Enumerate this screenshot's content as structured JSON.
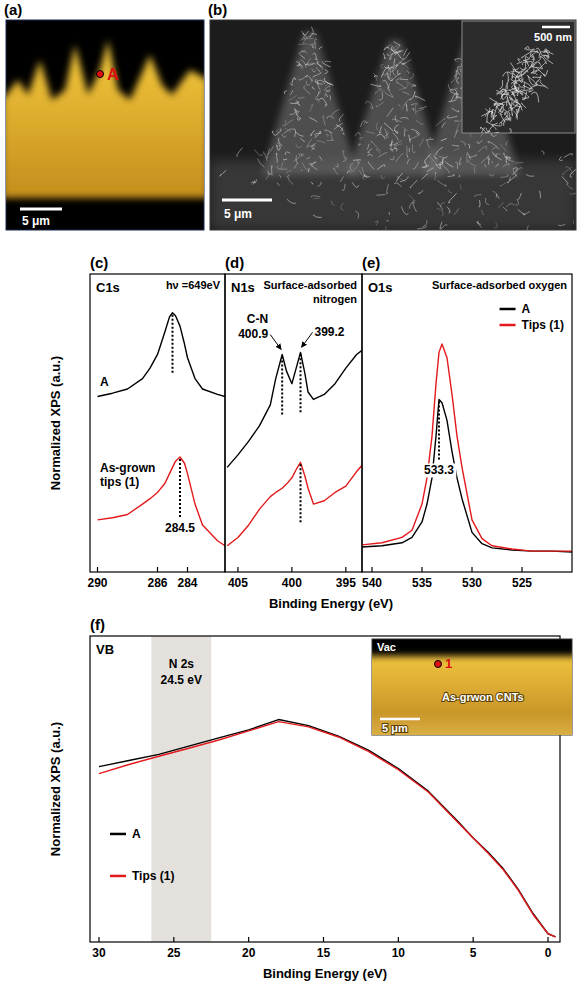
{
  "figure": {
    "x_label": "Binding Energy (eV)",
    "y_label": "Normalized XPS (a.u.)"
  },
  "images": [
    {
      "label": "(a)",
      "point": "A",
      "scale_bar": "5 μm"
    },
    {
      "label": "(b)",
      "scale_bar": "5 μm",
      "inset_scale_bar": "500 nm"
    }
  ],
  "chart_data": [
    {
      "type": "line",
      "panel": "(c)",
      "title": "C1s",
      "annotation": "hν =649eV",
      "x": [
        290,
        289,
        288,
        287,
        286.5,
        286,
        285.5,
        285.2,
        285.0,
        284.8,
        284.5,
        284.2,
        284,
        283.5,
        283,
        282,
        281.5
      ],
      "xlim": [
        290.5,
        281.5
      ],
      "xticks": [
        290,
        286,
        284
      ],
      "ylim": [
        0,
        1
      ],
      "tick_labels": "x",
      "series": [
        {
          "name": "A",
          "color": "#000000",
          "values": [
            0.589,
            0.6,
            0.614,
            0.649,
            0.684,
            0.73,
            0.807,
            0.856,
            0.87,
            0.86,
            0.825,
            0.765,
            0.719,
            0.649,
            0.614,
            0.596,
            0.589
          ]
        },
        {
          "name": "As-grown tips (1)",
          "color": "#e31a1c",
          "values": [
            0.175,
            0.182,
            0.193,
            0.228,
            0.246,
            0.267,
            0.298,
            0.33,
            0.351,
            0.372,
            0.386,
            0.365,
            0.33,
            0.228,
            0.158,
            0.105,
            0.088
          ]
        }
      ],
      "peaks": [
        {
          "x": 285.0,
          "series": 0
        },
        {
          "x": 284.5,
          "series": 1,
          "label": "284.5"
        }
      ]
    },
    {
      "type": "line",
      "panel": "(d)",
      "title": "N1s",
      "annotation": "Surface-adsorbed nitrogen",
      "x": [
        406,
        405,
        404,
        403,
        402,
        401.5,
        400.9,
        400.5,
        400,
        399.6,
        399.2,
        398.8,
        398.5,
        398,
        397,
        396,
        395,
        394,
        393.5
      ],
      "xlim": [
        406.2,
        393.5
      ],
      "xticks": [
        405,
        400,
        395
      ],
      "ylim": [
        0,
        1
      ],
      "tick_labels": "x",
      "series": [
        {
          "color": "#000000",
          "values": [
            0.351,
            0.393,
            0.439,
            0.491,
            0.561,
            0.649,
            0.73,
            0.674,
            0.632,
            0.684,
            0.737,
            0.667,
            0.604,
            0.579,
            0.596,
            0.632,
            0.684,
            0.73,
            0.744
          ]
        },
        {
          "color": "#e31a1c",
          "values": [
            0.088,
            0.116,
            0.158,
            0.211,
            0.253,
            0.267,
            0.281,
            0.295,
            0.316,
            0.344,
            0.368,
            0.323,
            0.281,
            0.228,
            0.239,
            0.267,
            0.288,
            0.337,
            0.358
          ]
        }
      ],
      "peaks": [
        {
          "x": 400.9,
          "series": 0,
          "label": "400.9",
          "tag": "C-N"
        },
        {
          "x": 399.2,
          "series": 0,
          "label": "399.2"
        },
        {
          "x": 399.2,
          "series": 1
        }
      ]
    },
    {
      "type": "line",
      "panel": "(e)",
      "title": "O1s",
      "annotation": "Surface-adsorbed oxygen",
      "x": [
        541,
        539,
        537,
        536,
        535,
        534.5,
        534,
        533.6,
        533.3,
        533,
        532.5,
        532,
        531.5,
        531,
        530,
        529,
        528,
        526,
        524,
        522,
        520
      ],
      "xlim": [
        541,
        520
      ],
      "xticks": [
        540,
        535,
        530,
        525
      ],
      "ylim": [
        0,
        1
      ],
      "tick_labels": "x",
      "legend": "upper right",
      "series": [
        {
          "name": "A",
          "color": "#000000",
          "values": [
            0.084,
            0.088,
            0.098,
            0.116,
            0.168,
            0.228,
            0.316,
            0.456,
            0.579,
            0.568,
            0.509,
            0.404,
            0.316,
            0.246,
            0.133,
            0.095,
            0.081,
            0.074,
            0.07,
            0.07,
            0.067
          ]
        },
        {
          "name": "Tips (1)",
          "color": "#e31a1c",
          "values": [
            0.091,
            0.098,
            0.116,
            0.14,
            0.228,
            0.316,
            0.456,
            0.632,
            0.737,
            0.765,
            0.719,
            0.596,
            0.456,
            0.351,
            0.175,
            0.112,
            0.088,
            0.077,
            0.07,
            0.07,
            0.07
          ]
        }
      ],
      "peaks": [
        {
          "x": 533.3,
          "series": 0,
          "label": "533.3"
        }
      ]
    },
    {
      "type": "line",
      "panel": "(f)",
      "title": "VB",
      "x_label": "Binding Energy (eV)",
      "y_label": "Normalized XPS (a.u.)",
      "x": [
        30,
        28,
        26,
        24,
        22,
        20,
        18,
        16,
        14,
        12,
        10,
        8,
        6,
        5,
        4,
        3,
        2,
        1,
        0,
        -0.5
      ],
      "xlim": [
        30.6,
        -0.8
      ],
      "xticks": [
        30,
        25,
        20,
        15,
        10,
        5,
        0
      ],
      "ylim": [
        0,
        1
      ],
      "tick_labels": "x",
      "legend": "lower left",
      "series": [
        {
          "name": "A",
          "color": "#000000",
          "values": [
            0.573,
            0.593,
            0.613,
            0.64,
            0.667,
            0.693,
            0.727,
            0.707,
            0.673,
            0.627,
            0.567,
            0.493,
            0.393,
            0.34,
            0.293,
            0.24,
            0.173,
            0.093,
            0.027,
            0.017
          ]
        },
        {
          "name": "Tips (1)",
          "color": "#e31a1c",
          "values": [
            0.55,
            0.58,
            0.607,
            0.633,
            0.66,
            0.69,
            0.72,
            0.703,
            0.67,
            0.623,
            0.563,
            0.49,
            0.39,
            0.34,
            0.29,
            0.237,
            0.17,
            0.09,
            0.027,
            0.017
          ]
        }
      ],
      "band": {
        "range": [
          26.5,
          22.5
        ],
        "label": "N 2s",
        "value_label": "24.5 eV"
      },
      "inset": {
        "top_label": "Vac",
        "point": "1",
        "region_label": "As-grwon CNTs",
        "scale_bar": "5 μm"
      }
    }
  ]
}
